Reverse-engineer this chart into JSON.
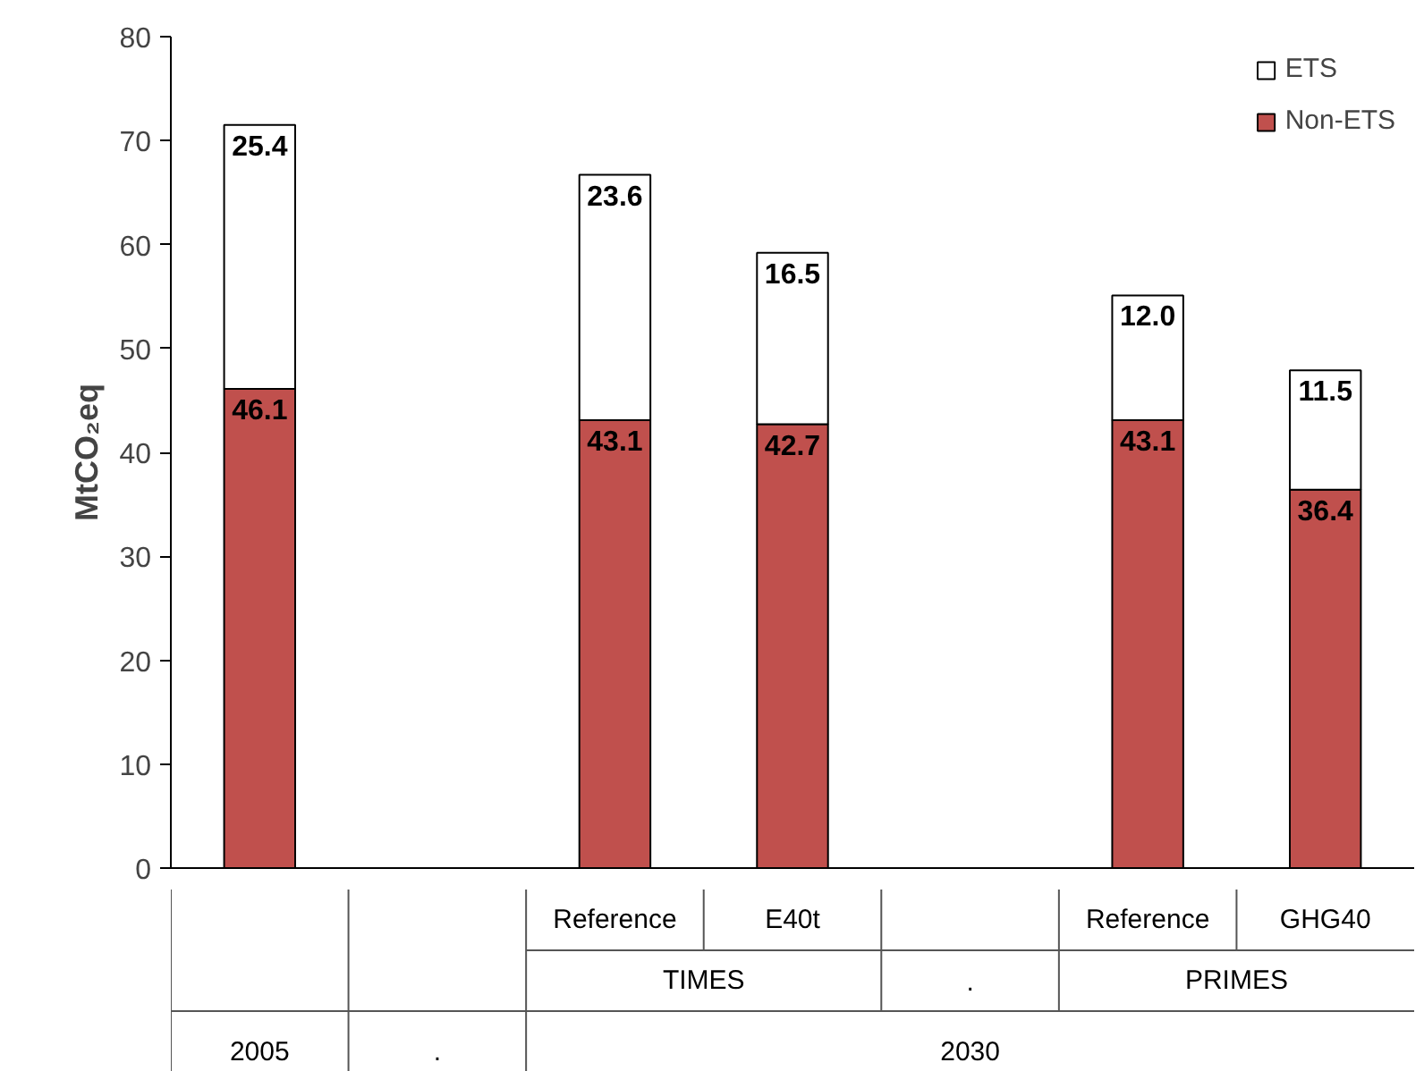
{
  "chart_data": {
    "type": "bar",
    "stacked": true,
    "ylabel": "MtCO₂eq",
    "categories": [
      null,
      null,
      "Reference",
      "E40t",
      null,
      "Reference",
      "GHG40"
    ],
    "series": [
      {
        "name": "Non-ETS",
        "color": "#c0504d",
        "values": [
          46.1,
          null,
          43.1,
          42.7,
          null,
          43.1,
          36.4
        ],
        "value_labels": [
          "46.1",
          null,
          "43.1",
          "42.7",
          null,
          "43.1",
          "36.4"
        ]
      },
      {
        "name": "ETS",
        "color": "#ffffff",
        "values": [
          25.4,
          null,
          23.6,
          16.5,
          null,
          12.0,
          11.5
        ],
        "value_labels": [
          "25.4",
          null,
          "23.6",
          "16.5",
          null,
          "12.0",
          "11.5"
        ]
      }
    ],
    "ylim": [
      0,
      80
    ],
    "yticks": [
      0,
      10,
      20,
      30,
      40,
      50,
      60,
      70,
      80
    ],
    "legend": "top right",
    "grid": false,
    "annotations": [
      "TIMES",
      ".",
      "PRIMES",
      "2005",
      ".",
      "2030"
    ]
  }
}
